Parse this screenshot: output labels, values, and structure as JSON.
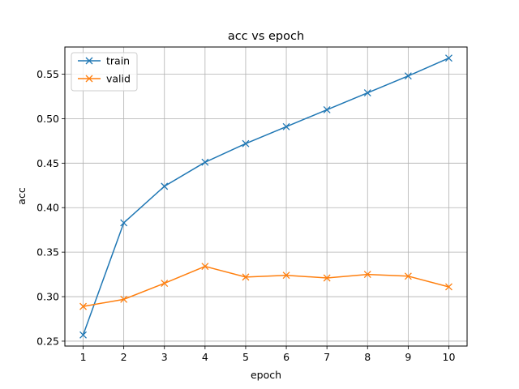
{
  "chart_data": {
    "type": "line",
    "title": "acc vs epoch",
    "xlabel": "epoch",
    "ylabel": "acc",
    "x": [
      1,
      2,
      3,
      4,
      5,
      6,
      7,
      8,
      9,
      10
    ],
    "xlim": [
      0.55,
      10.45
    ],
    "ylim": [
      0.2445,
      0.5805
    ],
    "yticks": [
      0.25,
      0.3,
      0.35,
      0.4,
      0.45,
      0.5,
      0.55
    ],
    "ytick_labels": [
      "0.25",
      "0.30",
      "0.35",
      "0.40",
      "0.45",
      "0.50",
      "0.55"
    ],
    "xtick_labels": [
      "1",
      "2",
      "3",
      "4",
      "5",
      "6",
      "7",
      "8",
      "9",
      "10"
    ],
    "grid": true,
    "legend_position": "top-left",
    "marker": "x",
    "series": [
      {
        "name": "train",
        "color": "#1f77b4",
        "values": [
          0.257,
          0.383,
          0.424,
          0.451,
          0.472,
          0.491,
          0.51,
          0.529,
          0.548,
          0.568
        ]
      },
      {
        "name": "valid",
        "color": "#ff7f0e",
        "values": [
          0.289,
          0.297,
          0.315,
          0.334,
          0.322,
          0.324,
          0.321,
          0.325,
          0.323,
          0.311
        ]
      }
    ]
  }
}
